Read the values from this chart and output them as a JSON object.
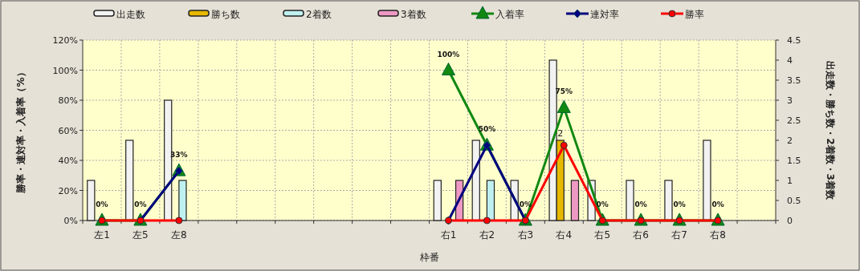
{
  "chart_data": {
    "type": "bar",
    "categories": [
      "左1",
      "左5",
      "左8",
      null,
      null,
      null,
      null,
      null,
      null,
      "右1",
      "右2",
      "右3",
      "右4",
      "右5",
      "右6",
      "右7",
      "右8",
      null
    ],
    "xlabel": "枠番",
    "ylabel": "勝率・連対率・入着率（%）",
    "y2label": "出走数・勝ち数・2着数・3着数",
    "ylim": [
      0,
      120
    ],
    "yticks": [
      {
        "value": 0,
        "label": "0%"
      },
      {
        "value": 20,
        "label": "20%"
      },
      {
        "value": 40,
        "label": "40%"
      },
      {
        "value": 60,
        "label": "60%"
      },
      {
        "value": 80,
        "label": "80%"
      },
      {
        "value": 100,
        "label": "100%"
      },
      {
        "value": 120,
        "label": "120%"
      }
    ],
    "y2lim": [
      0,
      4.5
    ],
    "y2ticks": [
      0,
      0.5,
      1,
      1.5,
      2,
      2.5,
      3,
      3.5,
      4,
      4.5
    ],
    "grid": true,
    "legend": "top",
    "series": [
      {
        "name": "出走数",
        "axis": "y2",
        "color": "#f2f2f2",
        "values": [
          1,
          2,
          3,
          null,
          null,
          null,
          null,
          null,
          null,
          1,
          2,
          1,
          4,
          1,
          1,
          1,
          2,
          null
        ]
      },
      {
        "name": "勝ち数",
        "axis": "y2",
        "color": "#e6b800",
        "values": [
          0,
          0,
          0,
          null,
          null,
          null,
          null,
          null,
          null,
          0,
          0,
          0,
          2,
          0,
          0,
          0,
          0,
          null
        ],
        "value_labels": [
          null,
          null,
          null,
          null,
          null,
          null,
          null,
          null,
          null,
          null,
          null,
          null,
          "2",
          null,
          null,
          null,
          null,
          null
        ]
      },
      {
        "name": "2着数",
        "axis": "y2",
        "color": "#bff0f0",
        "values": [
          0,
          0,
          1,
          null,
          null,
          null,
          null,
          null,
          null,
          0,
          1,
          0,
          0,
          0,
          0,
          0,
          0,
          null
        ]
      },
      {
        "name": "3着数",
        "axis": "y2",
        "color": "#ee99c4",
        "values": [
          0,
          0,
          0,
          null,
          null,
          null,
          null,
          null,
          null,
          1,
          0,
          0,
          1,
          0,
          0,
          0,
          0,
          null
        ]
      },
      {
        "name": "入着率",
        "type": "line",
        "axis": "y",
        "color": "#118811",
        "marker": "triangle",
        "values": [
          0,
          0,
          33,
          null,
          null,
          null,
          null,
          null,
          null,
          100,
          50,
          0,
          75,
          0,
          0,
          0,
          0,
          null
        ],
        "value_labels": [
          "0%",
          "0%",
          "33%",
          null,
          null,
          null,
          null,
          null,
          null,
          "100%",
          "50%",
          "0%",
          "75%",
          "0%",
          "0%",
          "0%",
          "0%",
          null
        ]
      },
      {
        "name": "連対率",
        "type": "line",
        "axis": "y",
        "color": "#000080",
        "marker": "diamond",
        "values": [
          null,
          0,
          33,
          null,
          null,
          null,
          null,
          null,
          null,
          0,
          50,
          0,
          null,
          null,
          null,
          null,
          null,
          null
        ]
      },
      {
        "name": "勝率",
        "type": "line",
        "axis": "y",
        "color": "#ff0000",
        "marker": "circle",
        "values": [
          0,
          0,
          0,
          null,
          null,
          null,
          null,
          null,
          null,
          0,
          0,
          0,
          50,
          0,
          0,
          0,
          0,
          null
        ]
      }
    ]
  }
}
